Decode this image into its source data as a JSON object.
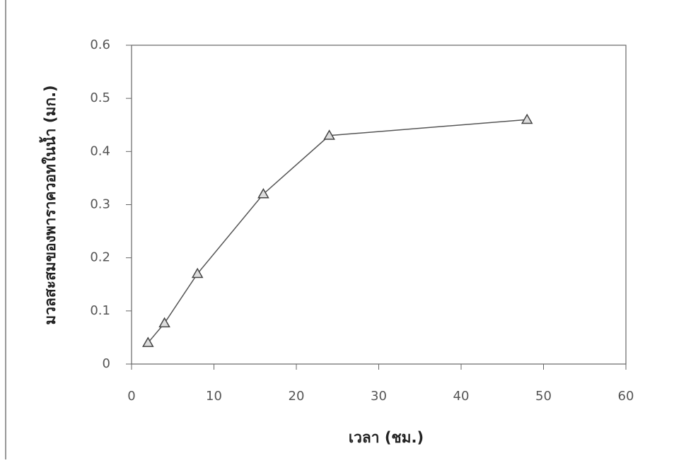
{
  "chart_data": {
    "type": "line",
    "x_label": "เวลา (ชม.)",
    "y_label": "มวลสะสมของพาราควอทในน้ำ (มก.)",
    "x": [
      2,
      4,
      8,
      16,
      24,
      48
    ],
    "series": [
      {
        "color": "#555555",
        "marker": "triangle",
        "values": [
          0.04,
          0.077,
          0.17,
          0.32,
          0.43,
          0.46
        ]
      }
    ],
    "xlim": [
      0,
      60
    ],
    "xticks": [
      0,
      10,
      20,
      30,
      40,
      50,
      60
    ],
    "ylim": [
      0,
      0.6
    ],
    "yticks": [
      0,
      0.1,
      0.2,
      0.3,
      0.4,
      0.5,
      0.6
    ]
  }
}
